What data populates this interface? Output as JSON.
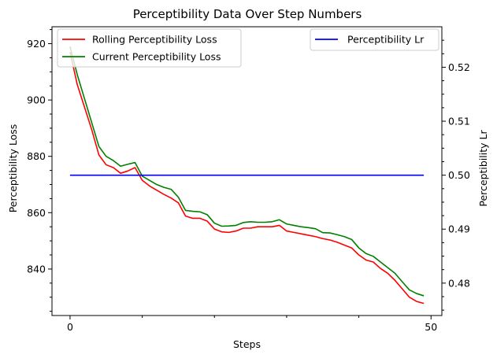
{
  "chart_data": {
    "type": "line",
    "title": "Perceptibility Data Over Step Numbers",
    "xlabel": "Steps",
    "ylabel_left": "Perceptibility Loss",
    "ylabel_right": "Perceptibility Lr",
    "xlim": [
      -2.5,
      51.5
    ],
    "ylim_left": [
      823.5,
      926.0
    ],
    "ylim_right": [
      0.474,
      0.5275
    ],
    "x_ticks": [
      0,
      50
    ],
    "x_minor_ticks": [
      10,
      20,
      30,
      40
    ],
    "y_ticks_left": [
      840,
      860,
      880,
      900,
      920
    ],
    "y_minor_step_left": 5,
    "y_ticks_right": [
      0.48,
      0.49,
      0.5,
      0.51,
      0.52
    ],
    "y_minor_step_right": 0.0025,
    "grid": false,
    "legend_left_placement": "top-left",
    "legend_right_placement": "top-right",
    "series": [
      {
        "name": "Rolling Perceptibility Loss",
        "axis": "left",
        "color": "#ff0000",
        "x": [
          0,
          1,
          2,
          3,
          4,
          5,
          6,
          7,
          8,
          9,
          10,
          11,
          12,
          13,
          14,
          15,
          16,
          17,
          18,
          19,
          20,
          21,
          22,
          23,
          24,
          25,
          26,
          27,
          28,
          29,
          30,
          31,
          32,
          33,
          34,
          35,
          36,
          37,
          38,
          39,
          40,
          41,
          42,
          43,
          44,
          45,
          46,
          47,
          48,
          49
        ],
        "values": [
          917.0,
          905.5,
          897.5,
          889.5,
          880.5,
          877.0,
          876.0,
          874.0,
          874.8,
          876.0,
          871.5,
          869.5,
          868.0,
          866.5,
          865.2,
          863.5,
          858.8,
          858.0,
          858.0,
          857.0,
          854.2,
          853.2,
          853.0,
          853.5,
          854.5,
          854.5,
          855.0,
          855.0,
          855.0,
          855.5,
          853.5,
          853.0,
          852.5,
          852.0,
          851.5,
          850.8,
          850.3,
          849.5,
          848.5,
          847.5,
          845.0,
          843.2,
          842.5,
          840.2,
          838.5,
          836.0,
          833.0,
          830.0,
          828.5,
          827.8
        ]
      },
      {
        "name": "Current Perceptibility Loss",
        "axis": "left",
        "color": "#008000",
        "x": [
          0,
          1,
          2,
          3,
          4,
          5,
          6,
          7,
          8,
          9,
          10,
          11,
          12,
          13,
          14,
          15,
          16,
          17,
          18,
          19,
          20,
          21,
          22,
          23,
          24,
          25,
          26,
          27,
          28,
          29,
          30,
          31,
          32,
          33,
          34,
          35,
          36,
          37,
          38,
          39,
          40,
          41,
          42,
          43,
          44,
          45,
          46,
          47,
          48,
          49
        ],
        "values": [
          919.0,
          909.0,
          900.5,
          892.0,
          883.5,
          880.0,
          878.5,
          876.5,
          877.2,
          877.8,
          873.0,
          871.5,
          870.0,
          869.0,
          868.3,
          865.5,
          860.8,
          860.5,
          860.3,
          859.3,
          856.3,
          855.2,
          855.3,
          855.5,
          856.5,
          856.8,
          856.6,
          856.6,
          856.8,
          857.5,
          856.0,
          855.5,
          855.0,
          854.7,
          854.3,
          852.9,
          852.8,
          852.2,
          851.5,
          850.5,
          847.5,
          845.5,
          844.5,
          842.5,
          840.5,
          838.5,
          835.5,
          832.6,
          831.3,
          830.5
        ]
      },
      {
        "name": "Perceptibility Lr",
        "axis": "right",
        "color": "#0000ff",
        "x": [
          0,
          49
        ],
        "values": [
          0.5,
          0.5
        ]
      }
    ]
  }
}
